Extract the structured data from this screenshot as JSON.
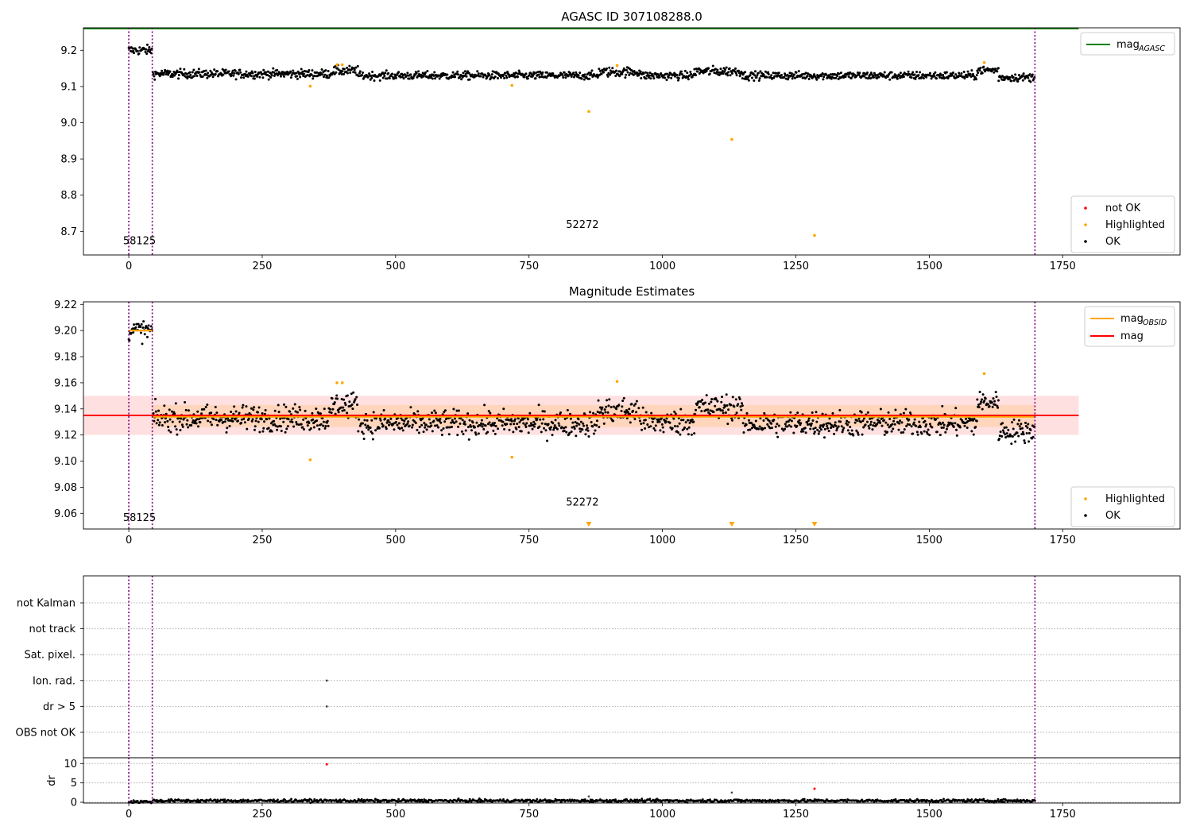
{
  "colors": {
    "ok": "#000000",
    "highlighted": "#ffa500",
    "not_ok": "#ff0000",
    "mag_agasc": "#008000",
    "mag_obsid": "#ffa500",
    "mag": "#ff0000",
    "vline": "#800080",
    "band_outer": "#ffcccc",
    "band_inner": "#ffd1b0"
  },
  "chart_data": [
    {
      "type": "scatter",
      "title": "AGASC ID 307108288.0",
      "xlim": [
        -85,
        1970
      ],
      "ylim": [
        8.635,
        9.262
      ],
      "xticks": [
        0,
        250,
        500,
        750,
        1000,
        1250,
        1500,
        1750
      ],
      "yticks": [
        8.7,
        8.8,
        8.9,
        9.0,
        9.1,
        9.2
      ],
      "yticklabels": [
        "8.7",
        "8.8",
        "8.9",
        "9.0",
        "9.1",
        "9.2"
      ],
      "mag_agasc": 9.26,
      "obsid_boundaries": [
        0,
        44,
        1698
      ],
      "obsid_labels": [
        {
          "x": 20,
          "y": 8.665,
          "text": "58125"
        },
        {
          "x": 850,
          "y": 8.71,
          "text": "52272"
        }
      ],
      "legend_lines": [
        {
          "label": "mag",
          "sub": "AGASC"
        }
      ],
      "legend_points": [
        "not OK",
        "Highlighted",
        "OK"
      ],
      "ok_segments": [
        {
          "x": [
            0,
            44
          ],
          "y": 9.2,
          "noise": 0.012
        },
        {
          "x": [
            45,
            380
          ],
          "y": 9.135,
          "noise": 0.011
        },
        {
          "x": [
            380,
            430
          ],
          "y": 9.143,
          "noise": 0.012
        },
        {
          "x": [
            430,
            880
          ],
          "y": 9.13,
          "noise": 0.01
        },
        {
          "x": [
            880,
            960
          ],
          "y": 9.14,
          "noise": 0.012
        },
        {
          "x": [
            960,
            1060
          ],
          "y": 9.13,
          "noise": 0.01
        },
        {
          "x": [
            1060,
            1150
          ],
          "y": 9.142,
          "noise": 0.012
        },
        {
          "x": [
            1150,
            1590
          ],
          "y": 9.13,
          "noise": 0.01
        },
        {
          "x": [
            1590,
            1630
          ],
          "y": 9.145,
          "noise": 0.01
        },
        {
          "x": [
            1630,
            1698
          ],
          "y": 9.125,
          "noise": 0.01
        }
      ],
      "highlighted": [
        {
          "x": 340,
          "y": 9.101
        },
        {
          "x": 390,
          "y": 9.16
        },
        {
          "x": 400,
          "y": 9.16
        },
        {
          "x": 718,
          "y": 9.103
        },
        {
          "x": 862,
          "y": 9.031
        },
        {
          "x": 915,
          "y": 9.158
        },
        {
          "x": 1130,
          "y": 8.954
        },
        {
          "x": 1285,
          "y": 8.689
        },
        {
          "x": 1603,
          "y": 9.166
        }
      ],
      "not_ok": []
    },
    {
      "type": "scatter",
      "title": "Magnitude Estimates",
      "xlim": [
        -85,
        1970
      ],
      "ylim": [
        9.048,
        9.222
      ],
      "xticks": [
        0,
        250,
        500,
        750,
        1000,
        1250,
        1500,
        1750
      ],
      "yticks": [
        9.06,
        9.08,
        9.1,
        9.12,
        9.14,
        9.16,
        9.18,
        9.2,
        9.22
      ],
      "yticklabels": [
        "9.06",
        "9.08",
        "9.10",
        "9.12",
        "9.14",
        "9.16",
        "9.18",
        "9.20",
        "9.22"
      ],
      "mag": 9.135,
      "mag_band_outer": [
        9.12,
        9.15
      ],
      "mag_band_inner": [
        9.126,
        9.143
      ],
      "mag_obsid": [
        {
          "x": [
            0,
            44
          ],
          "y": 9.2
        },
        {
          "x": [
            44,
            1698
          ],
          "y": 9.134
        }
      ],
      "obsid_boundaries": [
        0,
        44,
        1698
      ],
      "obsid_labels": [
        {
          "x": 20,
          "y": 9.054,
          "text": "58125"
        },
        {
          "x": 850,
          "y": 9.066,
          "text": "52272"
        }
      ],
      "legend_lines": [
        {
          "label": "mag",
          "sub": "OBSID"
        },
        {
          "label": "mag",
          "sub": ""
        }
      ],
      "legend_points": [
        "Highlighted",
        "OK"
      ],
      "ok_segments": [
        {
          "x": [
            0,
            44
          ],
          "y": 9.2,
          "noise": 0.007
        },
        {
          "x": [
            45,
            380
          ],
          "y": 9.133,
          "noise": 0.009
        },
        {
          "x": [
            380,
            430
          ],
          "y": 9.143,
          "noise": 0.009
        },
        {
          "x": [
            430,
            880
          ],
          "y": 9.129,
          "noise": 0.009
        },
        {
          "x": [
            880,
            960
          ],
          "y": 9.138,
          "noise": 0.01
        },
        {
          "x": [
            960,
            1060
          ],
          "y": 9.13,
          "noise": 0.009
        },
        {
          "x": [
            1060,
            1150
          ],
          "y": 9.141,
          "noise": 0.009
        },
        {
          "x": [
            1150,
            1590
          ],
          "y": 9.129,
          "noise": 0.009
        },
        {
          "x": [
            1590,
            1630
          ],
          "y": 9.145,
          "noise": 0.007
        },
        {
          "x": [
            1630,
            1698
          ],
          "y": 9.123,
          "noise": 0.008
        }
      ],
      "highlighted": [
        {
          "x": 340,
          "y": 9.101
        },
        {
          "x": 390,
          "y": 9.16
        },
        {
          "x": 400,
          "y": 9.16
        },
        {
          "x": 718,
          "y": 9.103
        },
        {
          "x": 915,
          "y": 9.161
        },
        {
          "x": 1603,
          "y": 9.167
        }
      ],
      "below_markers": [
        862,
        1130,
        1285
      ]
    },
    {
      "type": "scatter",
      "title": "",
      "xlim": [
        -85,
        1970
      ],
      "categories": [
        "not Kalman",
        "not track",
        "Sat. pixel.",
        "Ion. rad.",
        "dr > 5",
        "OBS not OK"
      ],
      "flag_points": [
        {
          "category": "Ion. rad.",
          "x": 371
        },
        {
          "category": "dr > 5",
          "x": 371
        }
      ],
      "obsid_boundaries": [
        0,
        44,
        1698
      ]
    },
    {
      "type": "scatter",
      "title": "",
      "ylabel": "dr",
      "xlim": [
        -85,
        1970
      ],
      "ylim": [
        -0.2,
        11.5
      ],
      "xticks": [
        0,
        250,
        500,
        750,
        1000,
        1250,
        1500,
        1750
      ],
      "yticks": [
        0,
        5,
        10
      ],
      "yticklabels": [
        "0",
        "5",
        "10"
      ],
      "baseline": 0.4,
      "not_ok": [
        {
          "x": 371,
          "y": 9.8
        },
        {
          "x": 1285,
          "y": 3.5
        }
      ],
      "outliers": [
        {
          "x": 862,
          "y": 1.5
        },
        {
          "x": 1130,
          "y": 2.5
        }
      ],
      "obsid_boundaries": [
        0,
        44,
        1698
      ]
    }
  ]
}
